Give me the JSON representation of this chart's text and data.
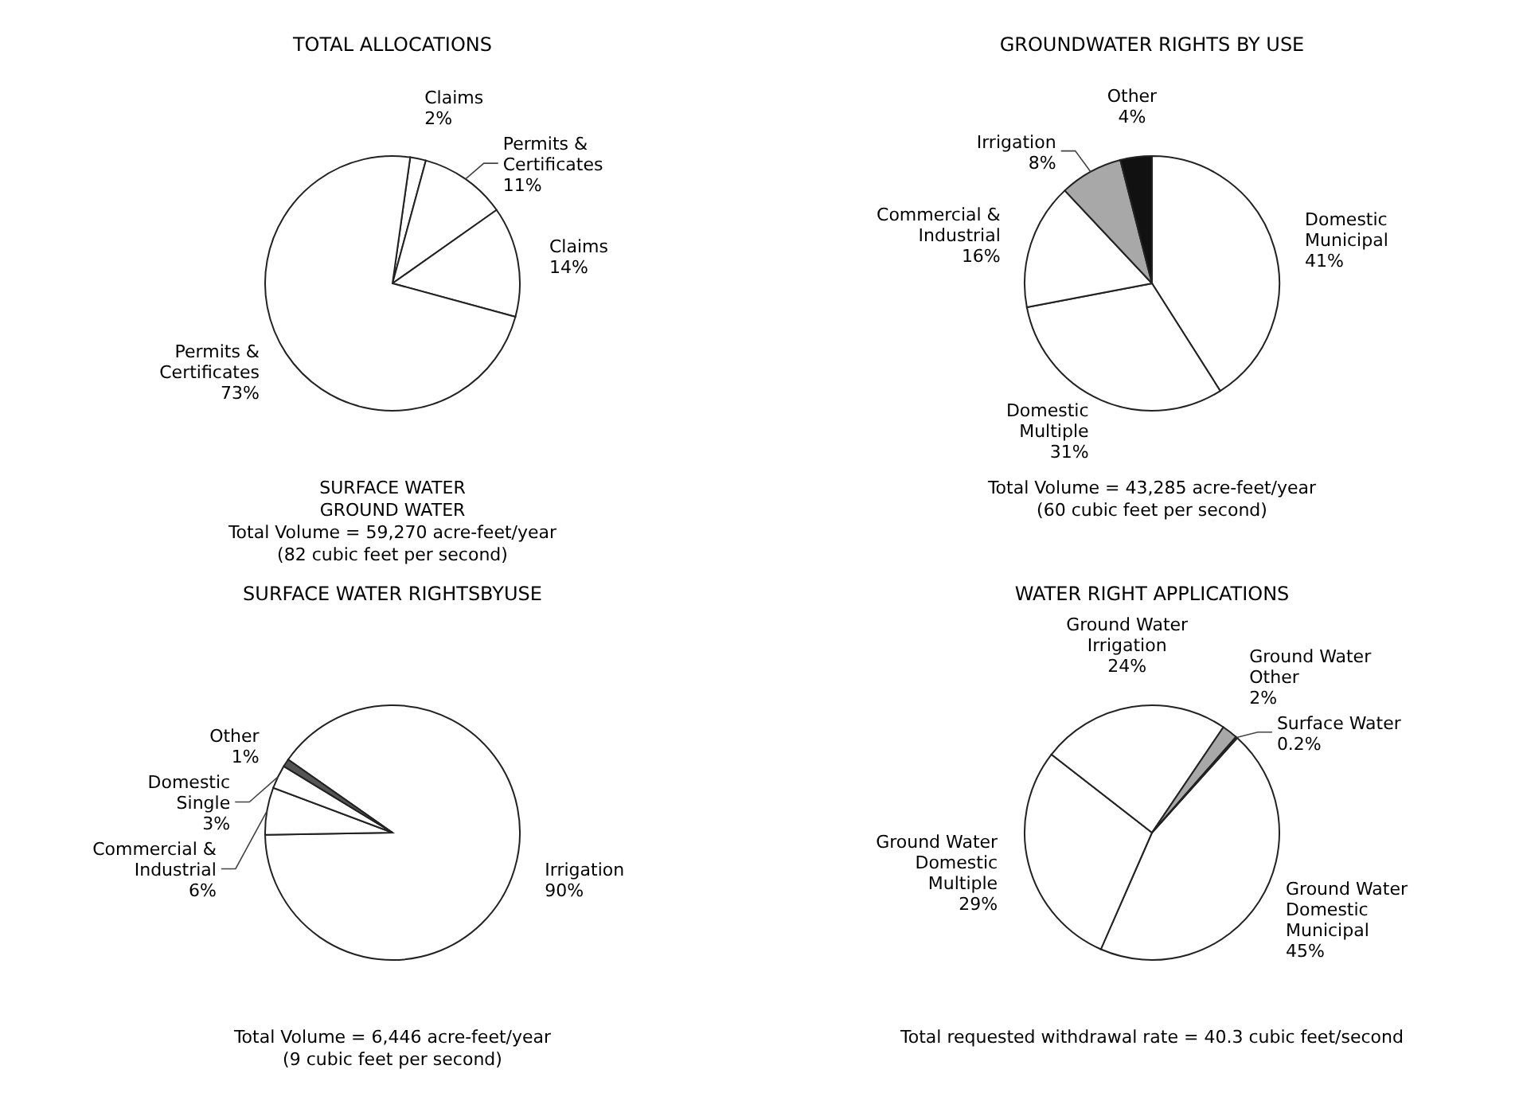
{
  "chart_data": [
    {
      "type": "pie",
      "title": "TOTAL ALLOCATIONS",
      "categories": [
        "Claims",
        "Permits & Certificates",
        "Claims",
        "Permits & Certificates"
      ],
      "values": [
        2,
        11,
        14,
        73
      ],
      "value_labels": [
        "2%",
        "11%",
        "14%",
        "73%"
      ],
      "colors": [
        "#ffffff",
        "#ffffff",
        "#ffffff",
        "#ffffff"
      ],
      "annotations": [
        "SURFACE WATER",
        "GROUND WATER",
        "Total Volume = 59,270 acre-feet/year",
        "(82 cubic feet per second)"
      ]
    },
    {
      "type": "pie",
      "title": "GROUNDWATER RIGHTS BY USE",
      "categories": [
        "Domestic Municipal",
        "Domestic Multiple",
        "Commercial & Industrial",
        "Irrigation",
        "Other"
      ],
      "values": [
        41,
        31,
        16,
        8,
        4
      ],
      "value_labels": [
        "41%",
        "31%",
        "16%",
        "8%",
        "4%"
      ],
      "colors": [
        "#ffffff",
        "#ffffff",
        "#ffffff",
        "#a8a8a8",
        "#111111"
      ],
      "annotations": [
        "Total Volume = 43,285 acre-feet/year",
        "(60 cubic feet per second)"
      ]
    },
    {
      "type": "pie",
      "title": "SURFACE WATER RIGHTSBYUSE",
      "categories": [
        "Irrigation",
        "Commercial & Industrial",
        "Domestic Single",
        "Other"
      ],
      "values": [
        90,
        6,
        3,
        1
      ],
      "value_labels": [
        "90%",
        "6%",
        "3%",
        "1%"
      ],
      "colors": [
        "#ffffff",
        "#ffffff",
        "#ffffff",
        "#555555"
      ],
      "annotations": [
        "Total Volume = 6,446 acre-feet/year",
        "(9 cubic feet per second)"
      ]
    },
    {
      "type": "pie",
      "title": "WATER RIGHT APPLICATIONS",
      "categories": [
        "Ground Water Domestic Municipal",
        "Ground Water Domestic Multiple",
        "Ground Water Irrigation",
        "Ground Water Other",
        "Surface Water"
      ],
      "values": [
        45,
        29,
        24,
        2,
        0.2
      ],
      "value_labels": [
        "45%",
        "29%",
        "24%",
        "2%",
        "0.2%"
      ],
      "colors": [
        "#ffffff",
        "#ffffff",
        "#ffffff",
        "#a8a8a8",
        "#222222"
      ],
      "annotations": [
        "Total requested withdrawal rate = 40.3 cubic feet/second"
      ]
    }
  ]
}
